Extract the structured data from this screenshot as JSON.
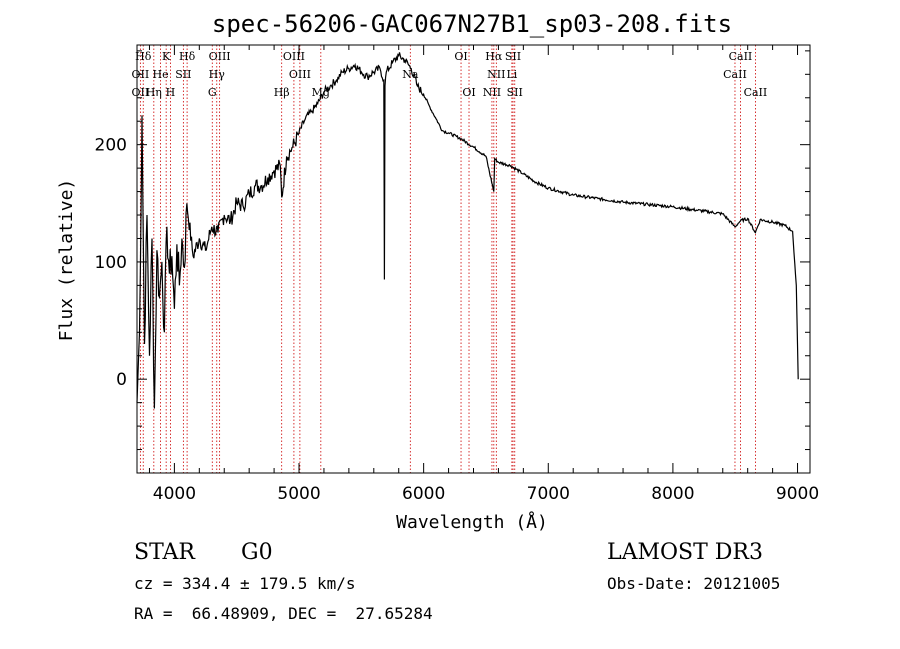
{
  "chart_data": {
    "type": "line",
    "title": "spec-56206-GAC067N27B1_sp03-208.fits",
    "xlabel": "Wavelength (Å)",
    "ylabel": "Flux (relative)",
    "xlim": [
      3700,
      9100
    ],
    "ylim": [
      -80,
      285
    ],
    "x_ticks": [
      {
        "value": 4000,
        "label": "4000"
      },
      {
        "value": 5000,
        "label": "5000"
      },
      {
        "value": 6000,
        "label": "6000"
      },
      {
        "value": 7000,
        "label": "7000"
      },
      {
        "value": 8000,
        "label": "8000"
      },
      {
        "value": 9000,
        "label": "9000"
      }
    ],
    "y_ticks": [
      {
        "value": 0,
        "label": "0"
      },
      {
        "value": 100,
        "label": "100"
      },
      {
        "value": 200,
        "label": "200"
      }
    ],
    "series": [
      {
        "name": "spectrum",
        "color": "#000000",
        "x": [
          3700,
          3720,
          3740,
          3760,
          3780,
          3800,
          3820,
          3840,
          3860,
          3880,
          3900,
          3920,
          3940,
          3960,
          3980,
          4000,
          4020,
          4040,
          4060,
          4080,
          4100,
          4150,
          4200,
          4250,
          4300,
          4350,
          4400,
          4450,
          4500,
          4550,
          4600,
          4650,
          4700,
          4750,
          4800,
          4850,
          4861,
          4900,
          4950,
          5000,
          5050,
          5100,
          5150,
          5200,
          5250,
          5300,
          5350,
          5400,
          5450,
          5500,
          5550,
          5600,
          5650,
          5680,
          5685,
          5690,
          5700,
          5750,
          5800,
          5850,
          5900,
          5950,
          6000,
          6050,
          6100,
          6150,
          6200,
          6300,
          6400,
          6500,
          6563,
          6570,
          6600,
          6700,
          6800,
          6900,
          7000,
          7200,
          7400,
          7600,
          7800,
          8000,
          8200,
          8400,
          8498,
          8542,
          8600,
          8662,
          8700,
          8800,
          8900,
          8960,
          8990,
          9000,
          9005
        ],
        "y": [
          -20,
          40,
          225,
          30,
          140,
          20,
          120,
          -25,
          110,
          70,
          100,
          40,
          130,
          90,
          105,
          60,
          115,
          80,
          120,
          95,
          150,
          105,
          120,
          110,
          130,
          125,
          140,
          135,
          150,
          148,
          158,
          165,
          165,
          172,
          178,
          182,
          155,
          190,
          198,
          210,
          222,
          228,
          235,
          245,
          250,
          255,
          262,
          265,
          268,
          262,
          258,
          262,
          265,
          255,
          85,
          250,
          262,
          270,
          276,
          272,
          265,
          250,
          243,
          232,
          222,
          212,
          210,
          205,
          198,
          190,
          160,
          188,
          185,
          182,
          175,
          168,
          163,
          157,
          154,
          151,
          149,
          147,
          144,
          141,
          130,
          135,
          137,
          125,
          136,
          134,
          131,
          126,
          80,
          30,
          0
        ]
      }
    ],
    "spectral_lines": [
      {
        "label": "Hδ",
        "x": 3750,
        "row": 0
      },
      {
        "label": "K",
        "x": 3934,
        "row": 0
      },
      {
        "label": "Hδ",
        "x": 4102,
        "row": 0
      },
      {
        "label": "OIII",
        "x": 4363,
        "row": 0
      },
      {
        "label": "OIII",
        "x": 4959,
        "row": 0
      },
      {
        "label": "OI",
        "x": 6300,
        "row": 0
      },
      {
        "label": "Hα",
        "x": 6563,
        "row": 0
      },
      {
        "label": "SII",
        "x": 6717,
        "row": 0
      },
      {
        "label": "CaII",
        "x": 8542,
        "row": 0
      },
      {
        "label": "OII",
        "x": 3727,
        "row": 1
      },
      {
        "label": "He",
        "x": 3889,
        "row": 1
      },
      {
        "label": "SII",
        "x": 4072,
        "row": 1
      },
      {
        "label": "Hγ",
        "x": 4340,
        "row": 1
      },
      {
        "label": "OIII",
        "x": 5007,
        "row": 1
      },
      {
        "label": "Na",
        "x": 5893,
        "row": 1
      },
      {
        "label": "NII",
        "x": 6583,
        "row": 1
      },
      {
        "label": "Li",
        "x": 6708,
        "row": 1
      },
      {
        "label": "CaII",
        "x": 8498,
        "row": 1
      },
      {
        "label": "OII",
        "x": 3727,
        "row": 2
      },
      {
        "label": "Hη",
        "x": 3835,
        "row": 2
      },
      {
        "label": "H",
        "x": 3968,
        "row": 2
      },
      {
        "label": "G",
        "x": 4304,
        "row": 2
      },
      {
        "label": "Hβ",
        "x": 4861,
        "row": 2
      },
      {
        "label": "Mg",
        "x": 5175,
        "row": 2
      },
      {
        "label": "OI",
        "x": 6364,
        "row": 2
      },
      {
        "label": "NII",
        "x": 6548,
        "row": 2
      },
      {
        "label": "SII",
        "x": 6731,
        "row": 2
      },
      {
        "label": "CaII",
        "x": 8662,
        "row": 2
      }
    ],
    "line_marker_color": "#cc0000",
    "grid": false
  },
  "info": {
    "object_class": "STAR",
    "subclass": "G0",
    "survey": "LAMOST DR3",
    "redshift_text": "cz = 334.4 ± 179.5 km/s",
    "obs_date_text": "Obs-Date: 20121005",
    "coords_text": "RA =  66.48909, DEC =  27.65284"
  }
}
